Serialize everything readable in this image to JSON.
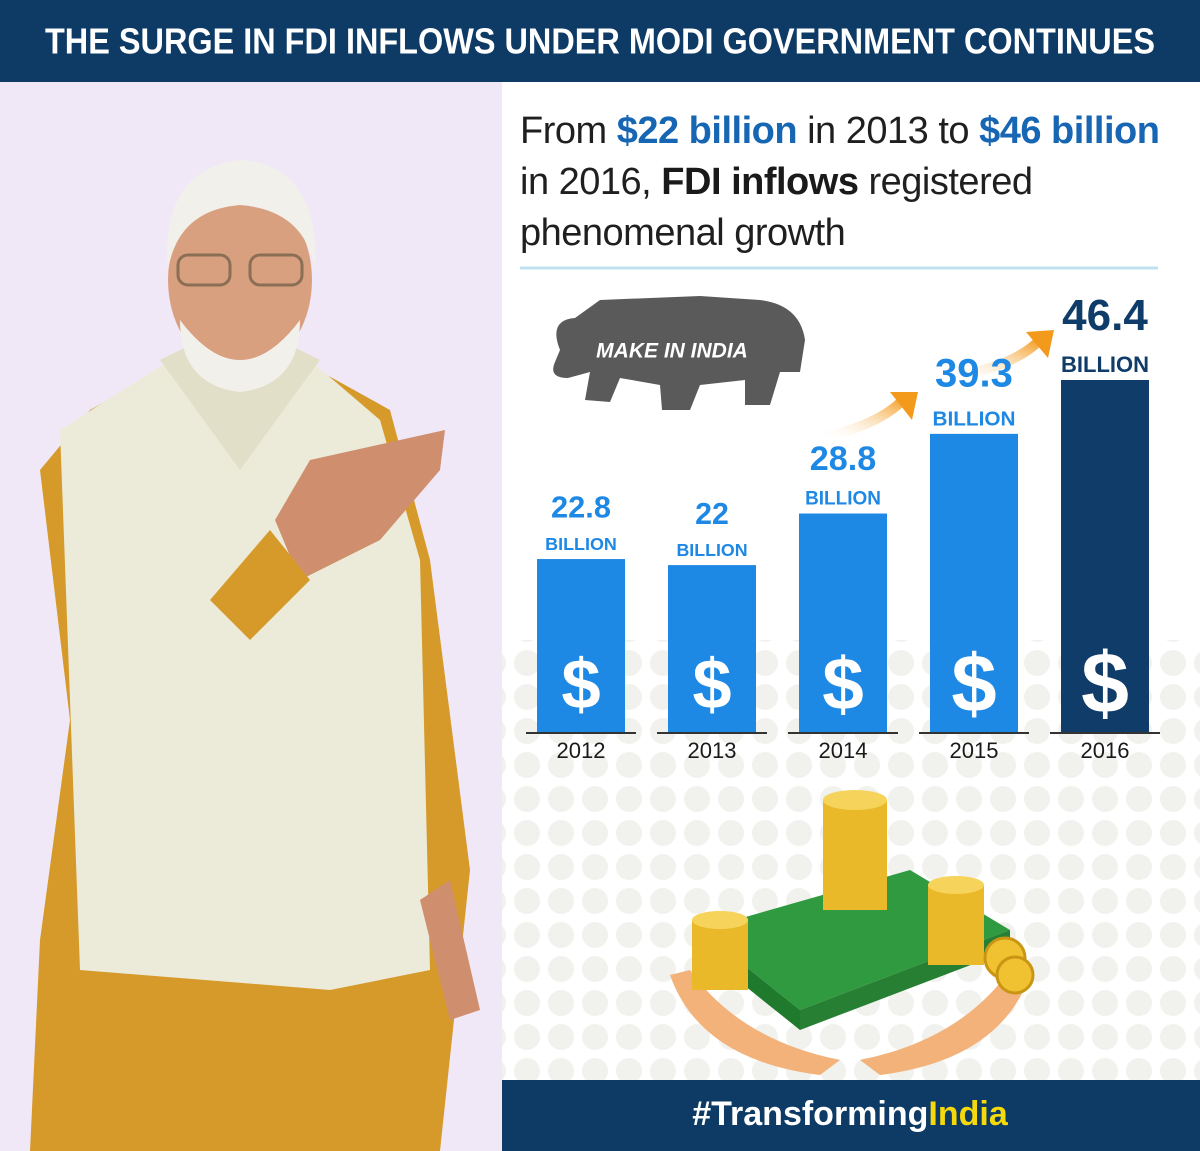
{
  "header": {
    "title": "THE SURGE IN FDI INFLOWS UNDER MODI GOVERNMENT CONTINUES"
  },
  "headline": {
    "segments": [
      "From ",
      "$22 billion",
      " in 2013 to ",
      "$46 billion",
      "in 2016, ",
      "FDI inflows",
      " registered",
      "phenomenal growth"
    ]
  },
  "logo_text": "MAKE IN INDIA",
  "chart_data": {
    "type": "bar",
    "categories": [
      "2012",
      "2013",
      "2014",
      "2015",
      "2016"
    ],
    "values": [
      22.8,
      22,
      28.8,
      39.3,
      46.4
    ],
    "unit_label": "BILLION",
    "bar_symbol": "$",
    "colors": [
      "#1e88e5",
      "#1e88e5",
      "#1e88e5",
      "#1e88e5",
      "#0f3c68"
    ]
  },
  "footer": {
    "parts": [
      "#Transforming",
      "India"
    ]
  }
}
